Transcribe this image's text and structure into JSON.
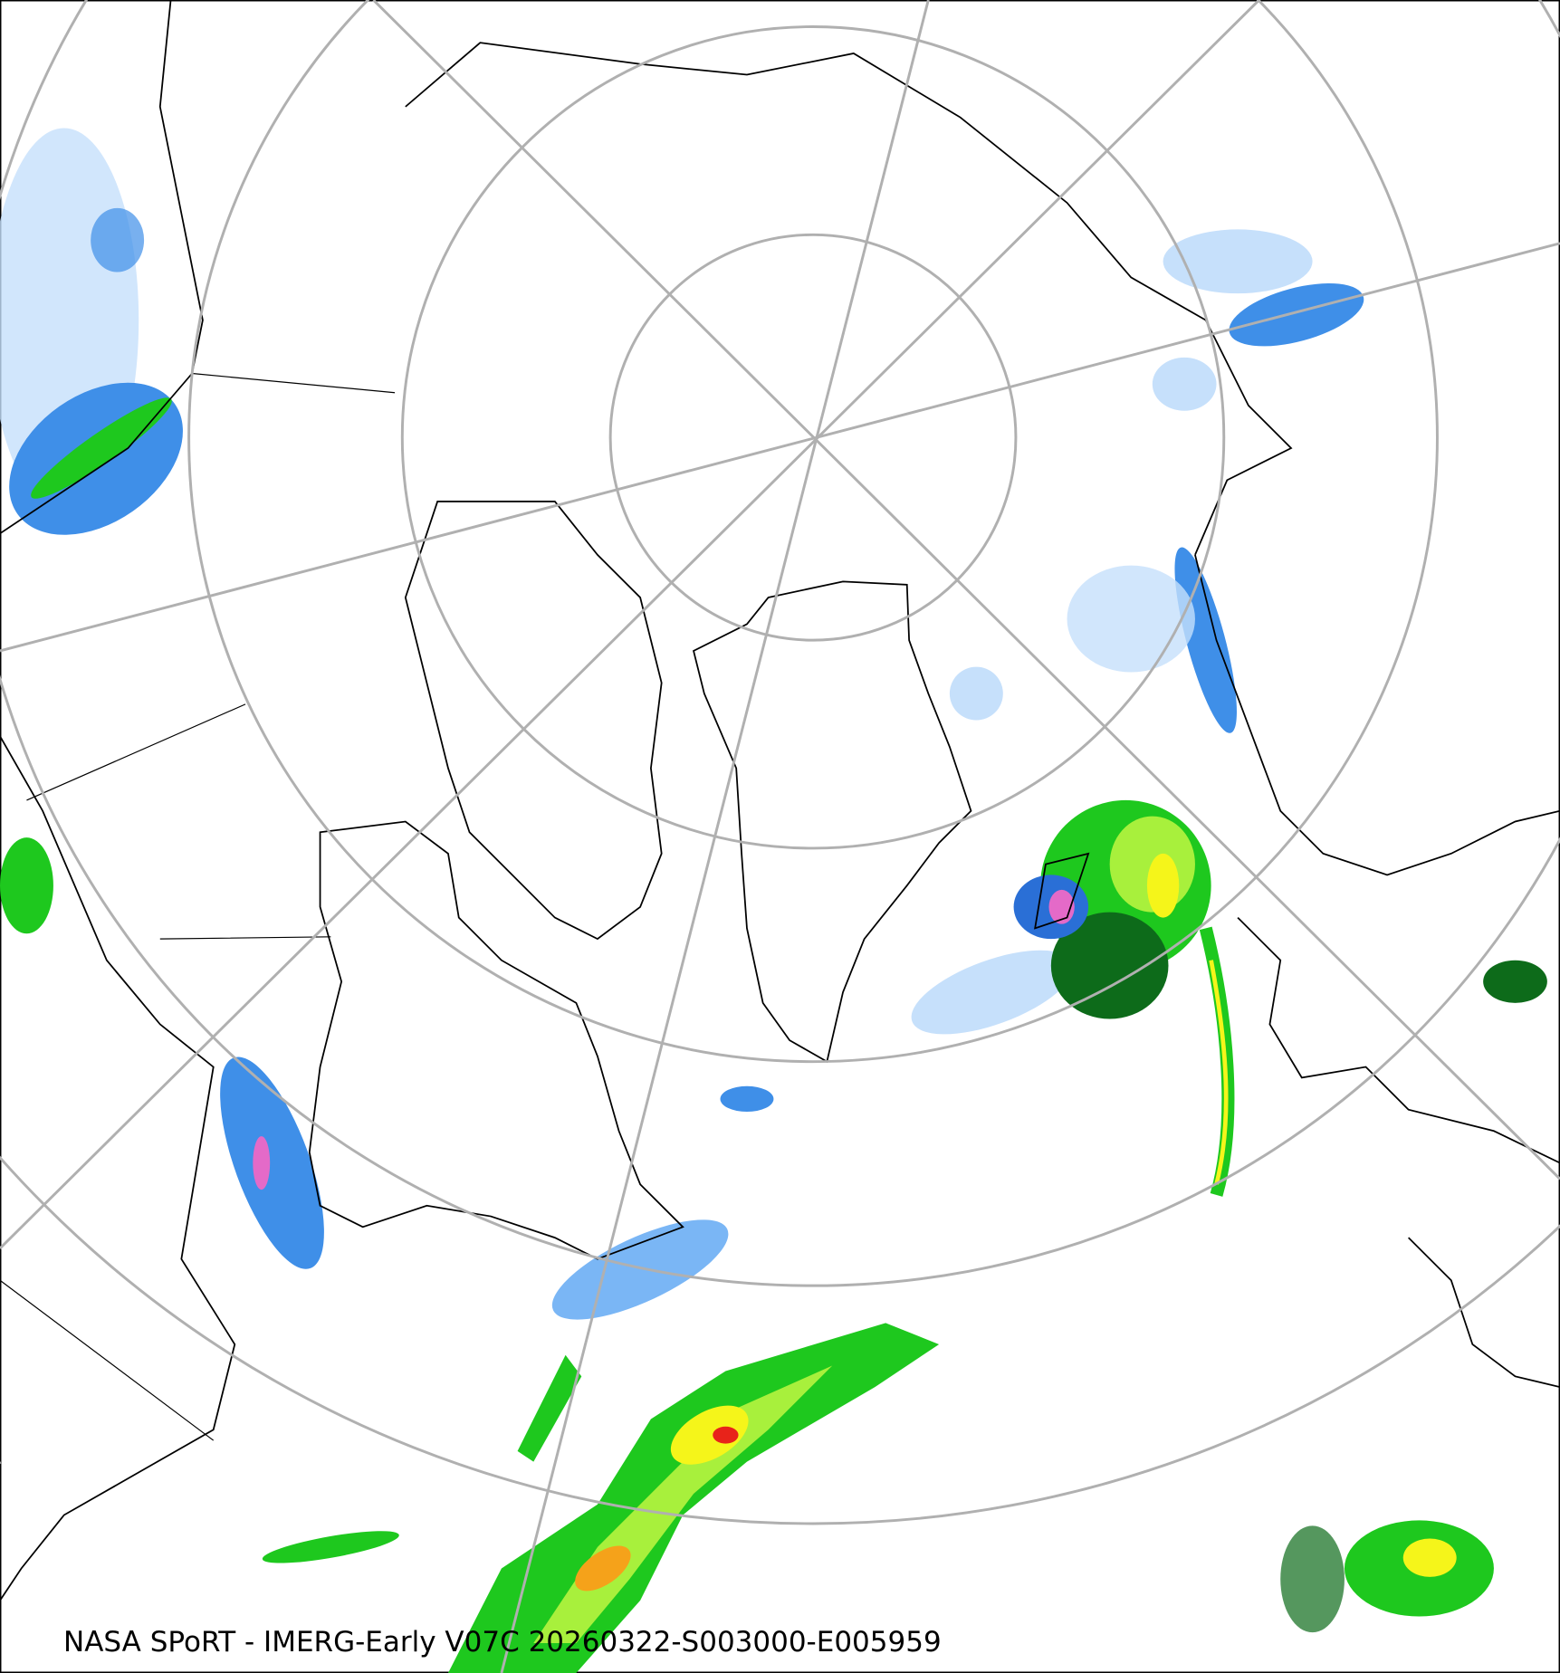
{
  "caption": "NASA SPoRT - IMERG-Early V07C 20260322-S003000-E005959",
  "map": {
    "projection": "north-polar-stereographic",
    "variable": "IMERG-Early precipitation rate",
    "colors": {
      "light_blue": "#c6e0fb",
      "blue": "#3f8fe8",
      "dark_blue": "#2a6fd6",
      "light_green": "#7fe05a",
      "green": "#1ec81e",
      "dark_green": "#0d6b1a",
      "yellow": "#f5f51a",
      "orange": "#f5a21a",
      "red": "#e8231a",
      "pink": "#e46ac8",
      "graticule": "#b0b0b0",
      "coastline": "#000000"
    }
  }
}
